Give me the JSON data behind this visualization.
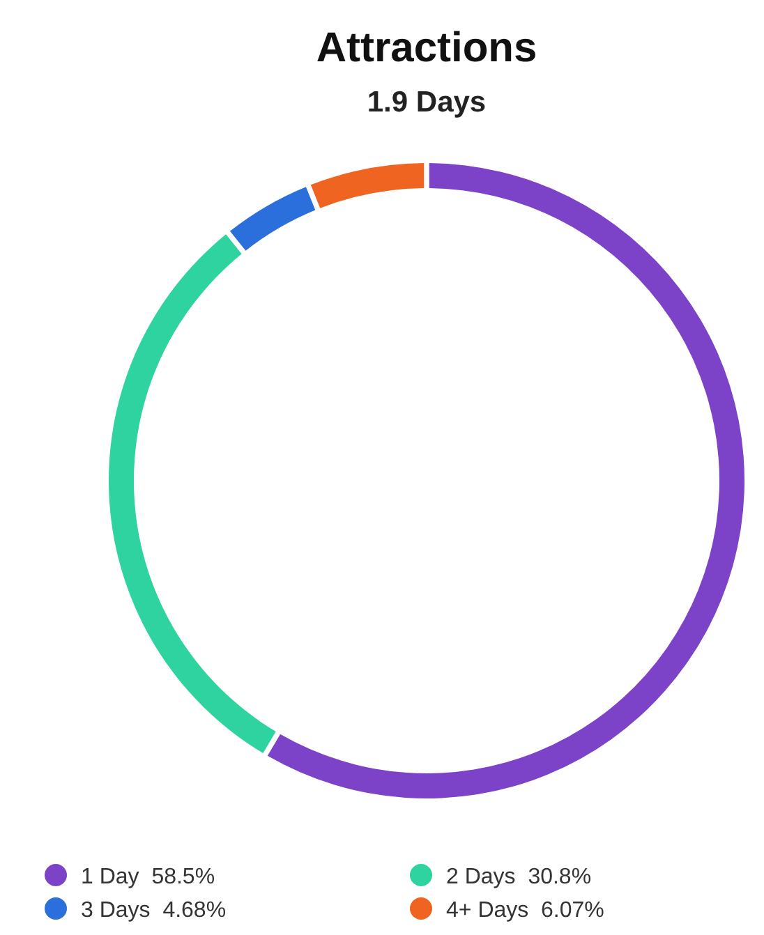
{
  "chart_data": {
    "type": "donut",
    "title": "Attractions",
    "subtitle": "1.9 Days",
    "categories": [
      "1 Day",
      "2 Days",
      "3 Days",
      "4+ Days"
    ],
    "values": [
      58.5,
      30.8,
      4.68,
      6.07
    ],
    "value_labels": [
      "58.5%",
      "30.8%",
      "4.68%",
      "6.07%"
    ],
    "colors": [
      "#7c43c8",
      "#2fd39f",
      "#2a6fdb",
      "#ef6420"
    ],
    "legend": "bottom"
  }
}
